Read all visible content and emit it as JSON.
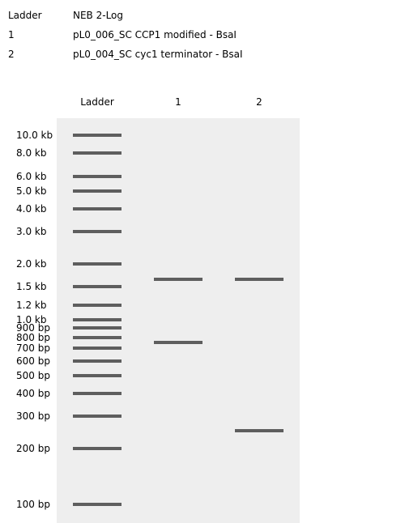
{
  "legend": [
    {
      "key": "Ladder",
      "value": "NEB 2-Log"
    },
    {
      "key": "1",
      "value": "pL0_006_SC CCP1 modified - BsaI"
    },
    {
      "key": "2",
      "value": "pL0_004_SC cyc1 terminator - BsaI"
    }
  ],
  "lanes": [
    "Ladder",
    "1",
    "2"
  ],
  "ladder_sizes": [
    "10.0 kb",
    "8.0 kb",
    "6.0 kb",
    "5.0 kb",
    "4.0 kb",
    "3.0 kb",
    "2.0 kb",
    "1.5 kb",
    "1.2 kb",
    "1.0 kb",
    "900 bp",
    "800 bp",
    "700 bp",
    "600 bp",
    "500 bp",
    "400 bp",
    "300 bp",
    "200 bp",
    "100 bp"
  ],
  "colors": {
    "gel_background": "#eeeeee",
    "band": "#5e5e5e"
  }
}
